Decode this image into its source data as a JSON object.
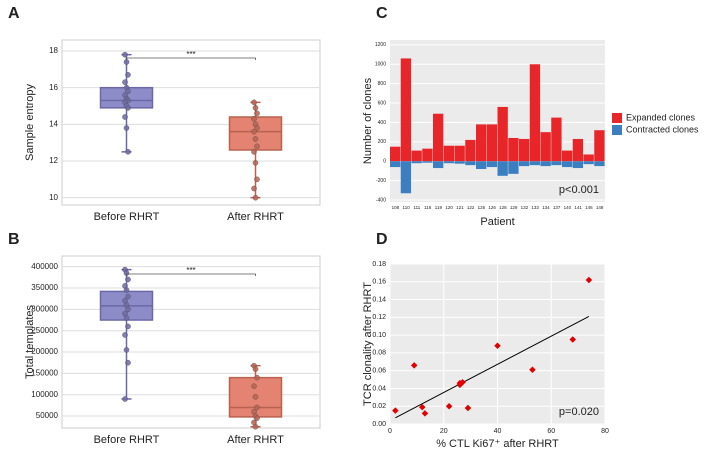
{
  "chart_data": [
    {
      "type": "box",
      "label": "A",
      "ylabel": "Sample entropy",
      "categories": [
        "Before RHRT",
        "After RHRT"
      ],
      "ylim": [
        9.6,
        18.6
      ],
      "yticks": [
        10,
        12,
        14,
        16,
        18
      ],
      "grid": true,
      "annotation": "***",
      "boxes": [
        {
          "color": "#8e8cc8",
          "edge": "#6b68a6",
          "whislo": 12.5,
          "q1": 14.9,
          "med": 15.3,
          "q3": 16.0,
          "whishi": 17.8,
          "points": [
            17.8,
            17.4,
            16.7,
            16.3,
            16.0,
            15.8,
            15.6,
            15.4,
            15.3,
            15.2,
            15.0,
            14.9,
            14.4,
            13.8,
            12.5
          ]
        },
        {
          "color": "#e48372",
          "edge": "#b8624f",
          "whislo": 10.0,
          "q1": 12.6,
          "med": 13.6,
          "q3": 14.4,
          "whishi": 15.2,
          "points": [
            15.2,
            14.9,
            14.6,
            14.3,
            14.0,
            13.8,
            13.6,
            13.2,
            12.8,
            12.5,
            11.9,
            11.0,
            10.5,
            10.0
          ]
        }
      ]
    },
    {
      "type": "box",
      "label": "B",
      "ylabel": "Total templates",
      "categories": [
        "Before RHRT",
        "After RHRT"
      ],
      "ylim": [
        22000,
        425000
      ],
      "yticks": [
        50000,
        100000,
        150000,
        200000,
        250000,
        300000,
        350000,
        400000
      ],
      "grid": true,
      "annotation": "***",
      "boxes": [
        {
          "color": "#8e8cc8",
          "edge": "#6b68a6",
          "whislo": 90000,
          "q1": 275000,
          "med": 308000,
          "q3": 342000,
          "whishi": 393000,
          "points": [
            393000,
            385000,
            370000,
            355000,
            345000,
            330000,
            320000,
            310000,
            300000,
            290000,
            280000,
            260000,
            240000,
            205000,
            175000,
            90000
          ]
        },
        {
          "color": "#e48372",
          "edge": "#b8624f",
          "whislo": 25000,
          "q1": 48000,
          "med": 70000,
          "q3": 140000,
          "whishi": 168000,
          "points": [
            168000,
            160000,
            140000,
            120000,
            95000,
            70000,
            60000,
            50000,
            45000,
            35000,
            25000
          ]
        }
      ]
    },
    {
      "type": "bar",
      "stacked": true,
      "label": "C",
      "ylabel": "Number of clones",
      "xlabel": "Patient",
      "annotation": "p<0.001",
      "categories": [
        "108",
        "110",
        "111",
        "116",
        "119",
        "120",
        "121",
        "122",
        "125",
        "126",
        "128",
        "129",
        "132",
        "133",
        "134",
        "137",
        "140",
        "141",
        "146",
        "148"
      ],
      "ylim": [
        -420,
        1250
      ],
      "yticks": [
        -400,
        -200,
        0,
        200,
        400,
        600,
        800,
        1000,
        1200
      ],
      "grid": true,
      "legend": "right",
      "series": [
        {
          "name": "Expanded clones",
          "color": "#e8262a",
          "values": [
            150,
            1060,
            110,
            130,
            490,
            160,
            160,
            220,
            380,
            380,
            560,
            240,
            230,
            1000,
            300,
            450,
            110,
            230,
            70,
            320
          ]
        },
        {
          "name": "Contracted clones",
          "color": "#3b7fc0",
          "values": [
            -60,
            -330,
            -20,
            -15,
            -70,
            -20,
            -25,
            -40,
            -80,
            -60,
            -150,
            -130,
            -50,
            -40,
            -50,
            -40,
            -60,
            -70,
            -30,
            -50
          ]
        }
      ]
    },
    {
      "type": "scatter",
      "label": "D",
      "ylabel": "TCR clonality after RHRT",
      "xlabel": "% CTL Ki67⁺ after RHRT",
      "annotation": "p=0.020",
      "color": "#e00000",
      "grid": true,
      "xlim": [
        0,
        80
      ],
      "xticks": [
        0,
        20,
        40,
        60,
        80
      ],
      "ylim": [
        0,
        0.18
      ],
      "yticks": [
        {
          "value": 0,
          "label": "0.00"
        },
        {
          "value": 0.02,
          "label": "0.02"
        },
        {
          "value": 0.04,
          "label": "0.04"
        },
        {
          "value": 0.06,
          "label": "0.06"
        },
        {
          "value": 0.08,
          "label": "0.08"
        },
        {
          "value": 0.1,
          "label": "0.10"
        },
        {
          "value": 0.12,
          "label": "0.12"
        },
        {
          "value": 0.14,
          "label": "0.14"
        },
        {
          "value": 0.16,
          "label": "0.16"
        },
        {
          "value": 0.18,
          "label": "0.18"
        }
      ],
      "x": [
        2,
        9,
        12,
        13,
        22,
        26,
        26,
        27,
        29,
        40,
        53,
        68,
        74
      ],
      "y": [
        0.015,
        0.066,
        0.019,
        0.012,
        0.02,
        0.044,
        0.046,
        0.047,
        0.018,
        0.088,
        0.061,
        0.095,
        0.162
      ],
      "trendline": {
        "x": [
          2,
          74
        ],
        "y": [
          0.007,
          0.121
        ]
      }
    }
  ]
}
